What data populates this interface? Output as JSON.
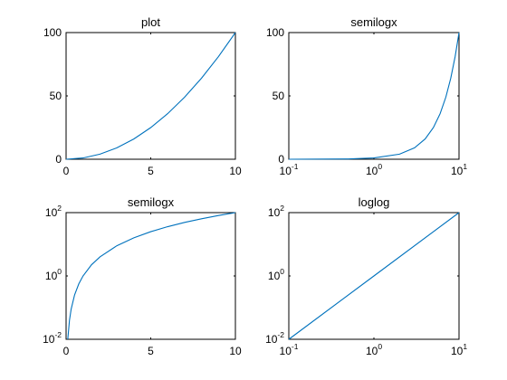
{
  "figure": {
    "background": "#ffffff"
  },
  "chart_data": [
    {
      "type": "line",
      "title": "plot",
      "xscale": "linear",
      "yscale": "linear",
      "xlim": [
        0,
        10
      ],
      "ylim": [
        0,
        100
      ],
      "xticks": [
        0,
        5,
        10
      ],
      "yticks": [
        0,
        50,
        100
      ],
      "grid": false,
      "x": [
        0,
        1,
        2,
        3,
        4,
        5,
        6,
        7,
        8,
        9,
        10
      ],
      "series": [
        {
          "y": [
            0,
            1,
            4,
            9,
            16,
            25,
            36,
            49,
            64,
            81,
            100
          ],
          "color": "#0072bd"
        }
      ]
    },
    {
      "type": "line",
      "title": "semilogx",
      "xscale": "log",
      "yscale": "linear",
      "xlim": [
        0.1,
        10
      ],
      "ylim": [
        0,
        100
      ],
      "xticks": [
        0.1,
        1,
        10
      ],
      "yticks": [
        0,
        50,
        100
      ],
      "grid": false,
      "x": [
        0.1,
        0.5,
        1,
        2,
        3,
        4,
        5,
        6,
        7,
        8,
        9,
        10
      ],
      "series": [
        {
          "y": [
            0.01,
            0.25,
            1,
            4,
            9,
            16,
            25,
            36,
            49,
            64,
            81,
            100
          ],
          "color": "#0072bd"
        }
      ]
    },
    {
      "type": "line",
      "title": "semilogx",
      "xscale": "linear",
      "yscale": "log",
      "xlim": [
        0,
        10
      ],
      "ylim": [
        0.01,
        100
      ],
      "xticks": [
        0,
        5,
        10
      ],
      "yticks": [
        0.01,
        1,
        100
      ],
      "grid": false,
      "x": [
        0.1,
        0.2,
        0.3,
        0.5,
        0.75,
        1,
        1.5,
        2,
        3,
        4,
        5,
        6,
        7,
        8,
        9,
        10
      ],
      "series": [
        {
          "y": [
            0.01,
            0.04,
            0.09,
            0.25,
            0.5625,
            1,
            2.25,
            4,
            9,
            16,
            25,
            36,
            49,
            64,
            81,
            100
          ],
          "color": "#0072bd"
        }
      ]
    },
    {
      "type": "line",
      "title": "loglog",
      "xscale": "log",
      "yscale": "log",
      "xlim": [
        0.1,
        10
      ],
      "ylim": [
        0.01,
        100
      ],
      "xticks": [
        0.1,
        1,
        10
      ],
      "yticks": [
        0.01,
        1,
        100
      ],
      "grid": false,
      "x": [
        0.1,
        1,
        10
      ],
      "series": [
        {
          "y": [
            0.01,
            1,
            100
          ],
          "color": "#0072bd"
        }
      ]
    }
  ]
}
